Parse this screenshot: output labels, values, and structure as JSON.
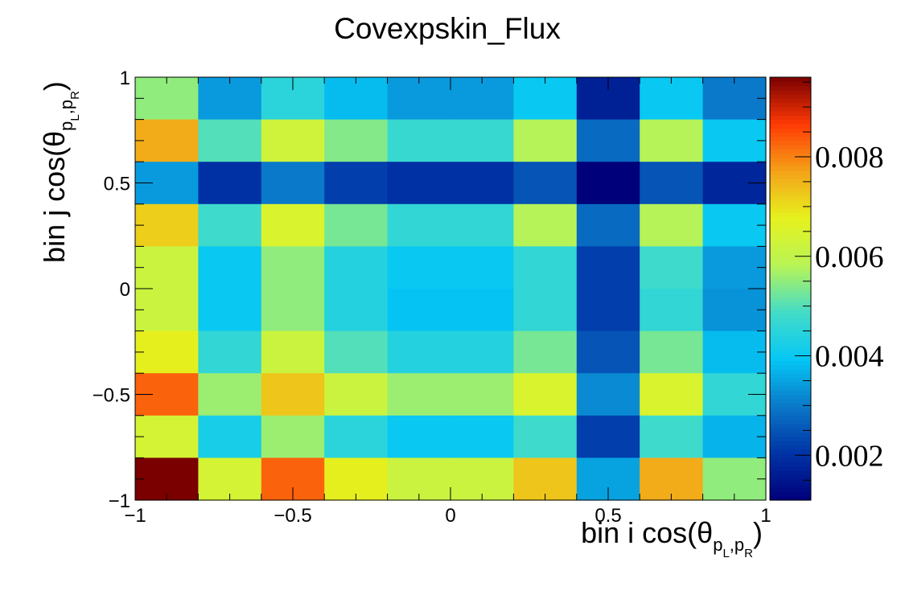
{
  "chart_data": {
    "type": "heatmap",
    "title": "Covexpskin_Flux",
    "xlabel": {
      "main": "bin i cos(θ",
      "sub_left": "p",
      "sub_sep": ",",
      "sub_right": "p",
      "sub_left_idx": "L",
      "sub_right_idx": "R",
      "close": ")"
    },
    "ylabel": {
      "main": "bin j cos(θ",
      "sub_left": "p",
      "sub_sep": ",",
      "sub_right": "p",
      "sub_left_idx": "L",
      "sub_right_idx": "R",
      "close": ")"
    },
    "xlim": [
      -1,
      1
    ],
    "ylim": [
      -1,
      1
    ],
    "x_ticks": [
      {
        "value": -1,
        "label": "−1"
      },
      {
        "value": -0.5,
        "label": "−0.5"
      },
      {
        "value": 0,
        "label": "0"
      },
      {
        "value": 0.5,
        "label": "0.5"
      },
      {
        "value": 1,
        "label": "1"
      }
    ],
    "y_ticks": [
      {
        "value": -1,
        "label": "−1"
      },
      {
        "value": -0.5,
        "label": "−0.5"
      },
      {
        "value": 0,
        "label": "0"
      },
      {
        "value": 0.5,
        "label": "0.5"
      },
      {
        "value": 1,
        "label": "1"
      }
    ],
    "colorbar": {
      "zlim": [
        0.0011,
        0.0096
      ],
      "ticks": [
        {
          "value": 0.002,
          "label": "0.002"
        },
        {
          "value": 0.004,
          "label": "0.004"
        },
        {
          "value": 0.006,
          "label": "0.006"
        },
        {
          "value": 0.008,
          "label": "0.008"
        }
      ]
    },
    "x_bins": 10,
    "y_bins": 10,
    "values_rows_top_to_bottom": [
      [
        0.0055,
        0.0034,
        0.0045,
        0.0038,
        0.0034,
        0.0034,
        0.004,
        0.0017,
        0.004,
        0.003
      ],
      [
        0.0076,
        0.005,
        0.0063,
        0.0054,
        0.0047,
        0.0047,
        0.0058,
        0.0028,
        0.0058,
        0.004
      ],
      [
        0.0034,
        0.002,
        0.003,
        0.0022,
        0.002,
        0.002,
        0.0025,
        0.0011,
        0.0025,
        0.0018
      ],
      [
        0.0072,
        0.0048,
        0.0065,
        0.0053,
        0.0046,
        0.0046,
        0.0058,
        0.0028,
        0.0058,
        0.004
      ],
      [
        0.0062,
        0.004,
        0.0055,
        0.0044,
        0.004,
        0.004,
        0.0046,
        0.0022,
        0.0048,
        0.0034
      ],
      [
        0.0062,
        0.004,
        0.0055,
        0.0044,
        0.0039,
        0.0039,
        0.0046,
        0.0022,
        0.0046,
        0.0033
      ],
      [
        0.0068,
        0.0046,
        0.0062,
        0.005,
        0.0044,
        0.0044,
        0.0053,
        0.0025,
        0.0053,
        0.0038
      ],
      [
        0.0083,
        0.0056,
        0.0073,
        0.0062,
        0.0056,
        0.0056,
        0.0065,
        0.0032,
        0.0065,
        0.0046
      ],
      [
        0.0064,
        0.0042,
        0.0056,
        0.0045,
        0.004,
        0.004,
        0.0048,
        0.0022,
        0.0048,
        0.0037
      ],
      [
        0.0096,
        0.0064,
        0.0083,
        0.0068,
        0.0062,
        0.0062,
        0.0073,
        0.0035,
        0.0076,
        0.0055
      ]
    ],
    "colormap_stops": [
      "#00007a",
      "#0033a6",
      "#0a78c8",
      "#05c7f5",
      "#43dcc8",
      "#b8f456",
      "#e6f21e",
      "#f4a318",
      "#ff3a05",
      "#7a0000"
    ]
  }
}
